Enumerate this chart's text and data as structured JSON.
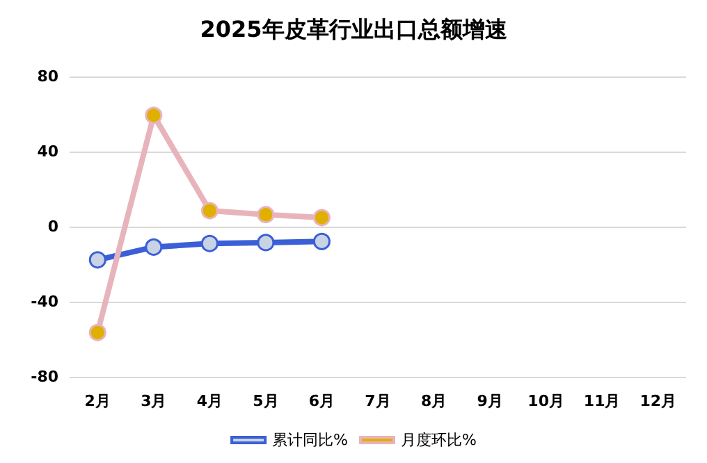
{
  "chart_data": {
    "type": "line",
    "title": "2025年皮革行业出口总额增速",
    "categories": [
      "2月",
      "3月",
      "4月",
      "5月",
      "6月",
      "7月",
      "8月",
      "9月",
      "10月",
      "11月",
      "12月"
    ],
    "series": [
      {
        "name": "累计同比%",
        "color": "#3a5fd6",
        "values": [
          -17.7,
          -10.9,
          -9,
          -8.5,
          -7.9,
          null,
          null,
          null,
          null,
          null,
          null
        ]
      },
      {
        "name": "月度环比%",
        "color": "#e8b4bc",
        "values": [
          -56.4,
          59.3,
          8.5,
          6.4,
          4.8,
          null,
          null,
          null,
          null,
          null,
          null
        ]
      }
    ],
    "ylim": [
      -80,
      80
    ],
    "yticks": [
      -80,
      -40,
      0,
      40,
      80
    ],
    "grid": "y",
    "legend": "bottom",
    "marker": "circle",
    "line_style": "solid"
  }
}
